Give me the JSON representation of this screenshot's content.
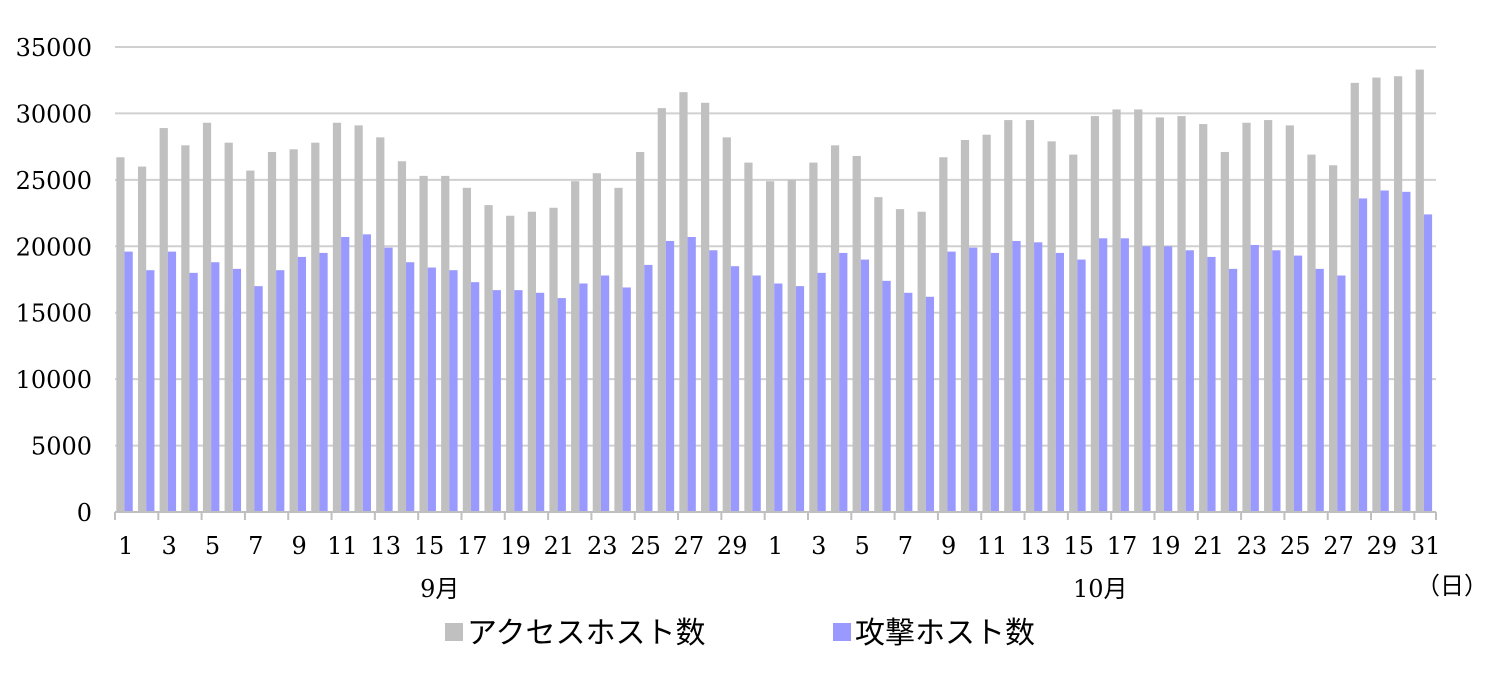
{
  "chart_data": {
    "type": "bar",
    "ylim": [
      0,
      35000
    ],
    "yticks": [
      0,
      5000,
      10000,
      15000,
      20000,
      25000,
      30000,
      35000
    ],
    "grid": true,
    "legend_placement": "bottom",
    "x_unit_label": "（日）",
    "months": [
      {
        "label": "9月",
        "start_index": 0,
        "days": 30
      },
      {
        "label": "10月",
        "start_index": 30,
        "days": 31
      }
    ],
    "categories": [
      "1",
      "2",
      "3",
      "4",
      "5",
      "6",
      "7",
      "8",
      "9",
      "10",
      "11",
      "12",
      "13",
      "14",
      "15",
      "16",
      "17",
      "18",
      "19",
      "20",
      "21",
      "22",
      "23",
      "24",
      "25",
      "26",
      "27",
      "28",
      "29",
      "30",
      "1",
      "2",
      "3",
      "4",
      "5",
      "6",
      "7",
      "8",
      "9",
      "10",
      "11",
      "12",
      "13",
      "14",
      "15",
      "16",
      "17",
      "18",
      "19",
      "20",
      "21",
      "22",
      "23",
      "24",
      "25",
      "26",
      "27",
      "28",
      "29",
      "30",
      "31"
    ],
    "tick_label_every": 2,
    "series": [
      {
        "name": "アクセスホスト数",
        "color": "#c0c0c0",
        "values": [
          26700,
          26000,
          28900,
          27600,
          29300,
          27800,
          25700,
          27100,
          27300,
          27800,
          29300,
          29100,
          28200,
          26400,
          25300,
          25300,
          24400,
          23100,
          22300,
          22600,
          22900,
          24900,
          25500,
          24400,
          27100,
          30400,
          31600,
          30800,
          28200,
          26300,
          24900,
          25000,
          26300,
          27600,
          26800,
          23700,
          22800,
          22600,
          26700,
          28000,
          28400,
          29500,
          29500,
          27900,
          26900,
          29800,
          30300,
          30300,
          29700,
          29800,
          29200,
          27100,
          29300,
          29500,
          29100,
          26900,
          26100,
          32300,
          32700,
          32800,
          33300
        ]
      },
      {
        "name": "攻撃ホスト数",
        "color": "#9999ff",
        "values": [
          19600,
          18200,
          19600,
          18000,
          18800,
          18300,
          17000,
          18200,
          19200,
          19500,
          20700,
          20900,
          19900,
          18800,
          18400,
          18200,
          17300,
          16700,
          16700,
          16500,
          16100,
          17200,
          17800,
          16900,
          18600,
          20400,
          20700,
          19700,
          18500,
          17800,
          17200,
          17000,
          18000,
          19500,
          19000,
          17400,
          16500,
          16200,
          19600,
          19900,
          19500,
          20400,
          20300,
          19500,
          19000,
          20600,
          20600,
          20000,
          20000,
          19700,
          19200,
          18300,
          20100,
          19700,
          19300,
          18300,
          17800,
          23600,
          24200,
          24100,
          22400
        ]
      }
    ]
  }
}
